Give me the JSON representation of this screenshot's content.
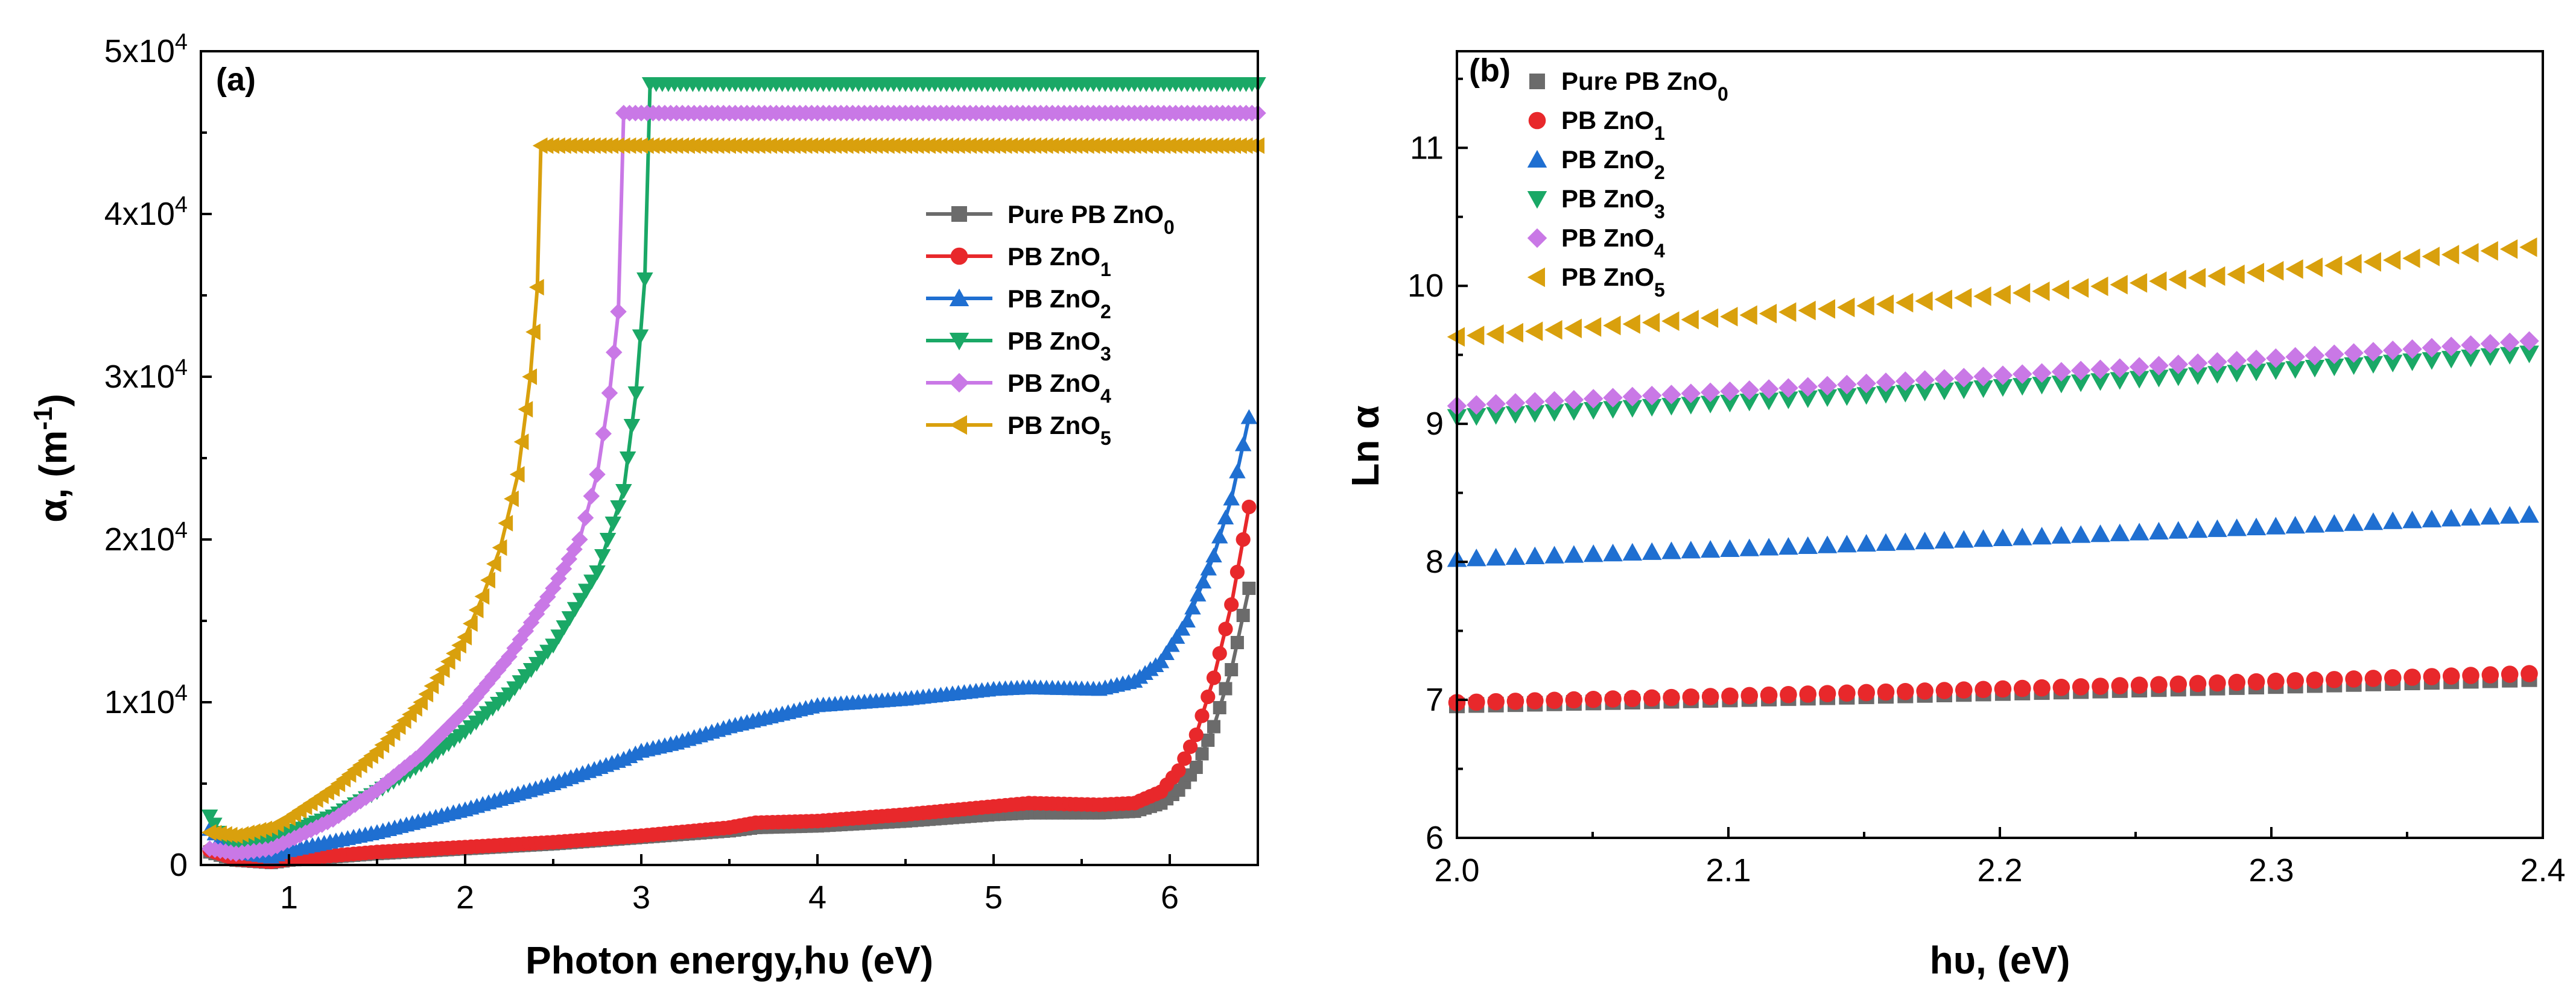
{
  "chart_data": [
    {
      "type": "line",
      "panel_label": "(a)",
      "xlabel": "Photon energy,hυ (eV)",
      "ylabel": "α, (m⁻¹)",
      "ylabel_main": "α, (m",
      "ylabel_sup": "-1",
      "ylabel_close": ")",
      "xlim": [
        0.5,
        6.5
      ],
      "ylim": [
        0,
        50000
      ],
      "x_ticks": [
        1,
        2,
        3,
        4,
        5,
        6
      ],
      "x_tick_labels": [
        "1",
        "2",
        "3",
        "4",
        "5",
        "6"
      ],
      "y_ticks": [
        0,
        10000,
        20000,
        30000,
        40000,
        50000
      ],
      "y_tick_labels": [
        {
          "base": "0",
          "sup": ""
        },
        {
          "base": "1x10",
          "sup": "4"
        },
        {
          "base": "2x10",
          "sup": "4"
        },
        {
          "base": "3x10",
          "sup": "4"
        },
        {
          "base": "4x10",
          "sup": "4"
        },
        {
          "base": "5x10",
          "sup": "4"
        }
      ],
      "legend_position": "right-middle",
      "series": [
        {
          "name": "Pure PB ZnO0",
          "label_base": "Pure PB ZnO",
          "label_sub": "0",
          "color": "#6b6b6b",
          "marker": "square",
          "x": [
            0.55,
            0.7,
            0.9,
            1.0,
            1.5,
            2.0,
            2.5,
            3.0,
            3.5,
            3.65,
            4.0,
            4.5,
            5.0,
            5.2,
            5.6,
            5.8,
            5.95,
            6.05,
            6.15,
            6.25,
            6.35,
            6.45
          ],
          "y": [
            800,
            300,
            150,
            300,
            700,
            1000,
            1300,
            1700,
            2100,
            2300,
            2400,
            2700,
            3100,
            3200,
            3200,
            3300,
            3800,
            4600,
            6000,
            8500,
            12000,
            17000
          ]
        },
        {
          "name": "PB ZnO1",
          "label_base": "PB ZnO",
          "label_sub": "1",
          "color": "#e8282b",
          "marker": "circle",
          "x": [
            0.55,
            0.7,
            0.9,
            1.0,
            1.5,
            2.0,
            2.5,
            3.0,
            3.5,
            3.65,
            4.0,
            4.5,
            5.0,
            5.2,
            5.6,
            5.8,
            5.95,
            6.05,
            6.15,
            6.25,
            6.35,
            6.45
          ],
          "y": [
            900,
            350,
            200,
            350,
            800,
            1100,
            1400,
            1800,
            2300,
            2600,
            2700,
            3100,
            3600,
            3800,
            3700,
            3800,
            4500,
            5800,
            8000,
            11500,
            16000,
            22000
          ]
        },
        {
          "name": "PB ZnO2",
          "label_base": "PB ZnO",
          "label_sub": "2",
          "color": "#1f6fd1",
          "marker": "triangle-up",
          "x": [
            0.55,
            0.7,
            0.9,
            1.0,
            1.5,
            2.0,
            2.5,
            2.9,
            3.0,
            3.2,
            3.5,
            4.0,
            4.5,
            5.0,
            5.2,
            5.6,
            5.8,
            5.95,
            6.1,
            6.25,
            6.35,
            6.45
          ],
          "y": [
            2200,
            800,
            500,
            900,
            2000,
            3400,
            5000,
            6500,
            7000,
            7500,
            8500,
            9800,
            10200,
            10800,
            10900,
            10800,
            11300,
            12500,
            15000,
            19000,
            22500,
            27500
          ]
        },
        {
          "name": "PB ZnO3",
          "label_base": "PB ZnO",
          "label_sub": "3",
          "color": "#1aa866",
          "marker": "triangle-down",
          "x": [
            0.55,
            0.6,
            0.7,
            0.9,
            1.0,
            1.25,
            1.5,
            1.75,
            2.0,
            2.25,
            2.5,
            2.75,
            2.9,
            2.97,
            3.02,
            3.05,
            3.5,
            4.0,
            4.5,
            5.0,
            5.5,
            6.0,
            6.5
          ],
          "y": [
            3000,
            2000,
            1200,
            1500,
            2000,
            3000,
            4500,
            6200,
            8200,
            10500,
            13500,
            18000,
            23000,
            29000,
            36000,
            48000,
            48000,
            48000,
            48000,
            48000,
            48000,
            48000,
            48000
          ]
        },
        {
          "name": "PB ZnO4",
          "label_base": "PB ZnO",
          "label_sub": "4",
          "color": "#c978e6",
          "marker": "diamond",
          "x": [
            0.55,
            0.7,
            0.9,
            1.0,
            1.25,
            1.5,
            1.75,
            2.0,
            2.25,
            2.5,
            2.65,
            2.75,
            2.82,
            2.87,
            2.9,
            3.5,
            4.0,
            4.5,
            5.0,
            5.5,
            6.0,
            6.5
          ],
          "y": [
            1000,
            700,
            1000,
            1500,
            2800,
            4600,
            6800,
            9500,
            12800,
            17000,
            20000,
            24000,
            29000,
            34000,
            46200,
            46200,
            46200,
            46200,
            46200,
            46200,
            46200,
            46200
          ]
        },
        {
          "name": "PB ZnO5",
          "label_base": "PB ZnO",
          "label_sub": "5",
          "color": "#d9a00d",
          "marker": "triangle-left",
          "x": [
            0.55,
            0.7,
            0.9,
            1.0,
            1.25,
            1.5,
            1.75,
            2.0,
            2.1,
            2.2,
            2.3,
            2.37,
            2.41,
            2.43,
            3.0,
            3.5,
            4.0,
            4.5,
            5.0,
            5.5,
            6.0,
            6.5
          ],
          "y": [
            2000,
            1800,
            2300,
            2900,
            4700,
            7000,
            10000,
            14000,
            16500,
            19500,
            24000,
            30000,
            35500,
            44200,
            44200,
            44200,
            44200,
            44200,
            44200,
            44200,
            44200,
            44200
          ]
        }
      ]
    },
    {
      "type": "scatter",
      "panel_label": "(b)",
      "xlabel": "hυ, (eV)",
      "ylabel": "Ln α",
      "xlim": [
        2.0,
        2.4
      ],
      "ylim": [
        6,
        11.7
      ],
      "x_ticks": [
        2.0,
        2.1,
        2.2,
        2.3,
        2.4
      ],
      "x_tick_labels": [
        "2.0",
        "2.1",
        "2.2",
        "2.3",
        "2.4"
      ],
      "y_ticks": [
        6,
        7,
        8,
        9,
        10,
        11
      ],
      "y_tick_labels": [
        "6",
        "7",
        "8",
        "9",
        "10",
        "11"
      ],
      "legend_position": "top-left",
      "point_count": 56,
      "x_start": 2.0,
      "x_end": 2.395,
      "series": [
        {
          "name": "Pure PB ZnO0",
          "label_base": "Pure PB ZnO",
          "label_sub": "0",
          "color": "#6b6b6b",
          "marker": "square",
          "y_start": 6.96,
          "y_end": 7.15
        },
        {
          "name": "PB ZnO1",
          "label_base": "PB ZnO",
          "label_sub": "1",
          "color": "#e8282b",
          "marker": "circle",
          "y_start": 6.98,
          "y_end": 7.19
        },
        {
          "name": "PB ZnO2",
          "label_base": "PB ZnO",
          "label_sub": "2",
          "color": "#1f6fd1",
          "marker": "triangle-up",
          "y_start": 8.02,
          "y_end": 8.34
        },
        {
          "name": "PB ZnO3",
          "label_base": "PB ZnO",
          "label_sub": "3",
          "color": "#1aa866",
          "marker": "triangle-down",
          "y_start": 9.05,
          "y_end": 9.51
        },
        {
          "name": "PB ZnO4",
          "label_base": "PB ZnO",
          "label_sub": "4",
          "color": "#c978e6",
          "marker": "diamond",
          "y_start": 9.13,
          "y_end": 9.6
        },
        {
          "name": "PB ZnO5",
          "label_base": "PB ZnO",
          "label_sub": "5",
          "color": "#d9a00d",
          "marker": "triangle-left",
          "y_start": 9.63,
          "y_end": 10.28
        }
      ]
    }
  ]
}
